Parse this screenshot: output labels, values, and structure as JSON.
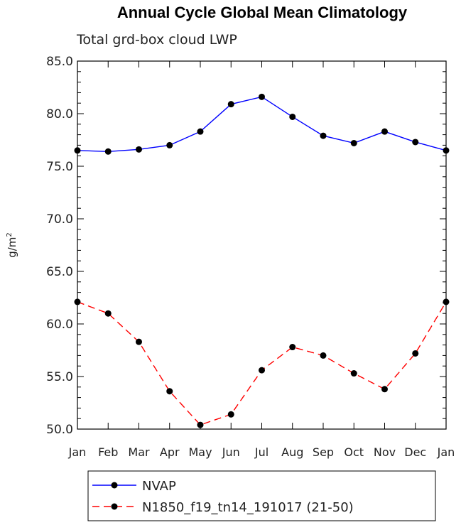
{
  "chart_data": {
    "type": "line",
    "title": "Annual Cycle Global Mean Climatology",
    "subtitle": "Total grd-box cloud LWP",
    "ylabel": "g/m",
    "ylabel_sup": "2",
    "ylim": [
      50,
      85
    ],
    "yticks": [
      "50.0",
      "55.0",
      "60.0",
      "65.0",
      "70.0",
      "75.0",
      "80.0",
      "85.0"
    ],
    "categories": [
      "Jan",
      "Feb",
      "Mar",
      "Apr",
      "May",
      "Jun",
      "Jul",
      "Aug",
      "Sep",
      "Oct",
      "Nov",
      "Dec",
      "Jan"
    ],
    "series": [
      {
        "name": "NVAP",
        "color": "#0000ff",
        "dash": "solid",
        "values": [
          76.5,
          76.4,
          76.6,
          77.0,
          78.3,
          80.9,
          81.6,
          79.7,
          77.9,
          77.2,
          78.3,
          77.3,
          76.5
        ]
      },
      {
        "name": "N1850_f19_tn14_191017 (21-50)",
        "color": "#ff0000",
        "dash": "dashed",
        "values": [
          62.1,
          61.0,
          58.3,
          53.6,
          50.4,
          51.4,
          55.6,
          57.8,
          57.0,
          55.3,
          53.8,
          57.2,
          62.1
        ]
      }
    ],
    "legend_position": "bottom"
  }
}
